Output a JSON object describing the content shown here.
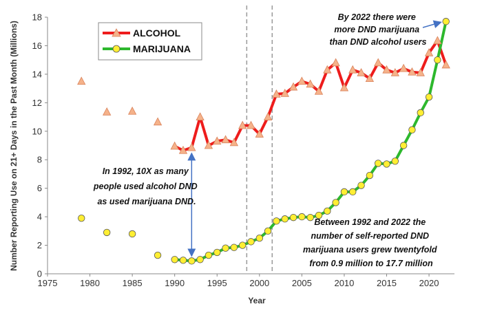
{
  "chart_data": {
    "type": "line",
    "title": "",
    "xlabel": "Year",
    "ylabel": "Number Reporting Use on 21+ Days in the Past Month (Millions)",
    "xlim": [
      1975,
      2023
    ],
    "ylim": [
      0,
      18
    ],
    "x_ticks": [
      1975,
      1980,
      1985,
      1990,
      1995,
      2000,
      2005,
      2010,
      2015,
      2020
    ],
    "y_ticks": [
      0,
      2,
      4,
      6,
      8,
      10,
      12,
      14,
      16,
      18
    ],
    "grid": false,
    "legend_position": "top-left",
    "vertical_reference_lines": [
      1998.5,
      2001.5
    ],
    "series": [
      {
        "name": "ALCOHOL",
        "color": "#ee1c1c",
        "marker": "triangle",
        "marker_color": "#f5b28a",
        "early_points": [
          [
            1979,
            13.5
          ],
          [
            1982,
            11.35
          ],
          [
            1985,
            11.4
          ],
          [
            1988,
            10.65
          ]
        ],
        "points": [
          [
            1990,
            8.95
          ],
          [
            1991,
            8.65
          ],
          [
            1992,
            8.85
          ],
          [
            1993,
            11.0
          ],
          [
            1994,
            9.0
          ],
          [
            1995,
            9.3
          ],
          [
            1996,
            9.4
          ],
          [
            1997,
            9.2
          ],
          [
            1998,
            10.4
          ],
          [
            1999,
            10.4
          ],
          [
            2000,
            9.8
          ],
          [
            2001,
            11.0
          ],
          [
            2002,
            12.6
          ],
          [
            2003,
            12.65
          ],
          [
            2004,
            13.1
          ],
          [
            2005,
            13.5
          ],
          [
            2006,
            13.3
          ],
          [
            2007,
            12.8
          ],
          [
            2008,
            14.3
          ],
          [
            2009,
            14.8
          ],
          [
            2010,
            13.05
          ],
          [
            2011,
            14.3
          ],
          [
            2012,
            14.1
          ],
          [
            2013,
            13.7
          ],
          [
            2014,
            14.8
          ],
          [
            2015,
            14.3
          ],
          [
            2016,
            14.1
          ],
          [
            2017,
            14.4
          ],
          [
            2018,
            14.15
          ],
          [
            2019,
            14.1
          ],
          [
            2020,
            15.5
          ],
          [
            2021,
            16.35
          ],
          [
            2022,
            14.65
          ]
        ]
      },
      {
        "name": "MARIJUANA",
        "color": "#2db82d",
        "marker": "circle",
        "marker_color": "#ffee33",
        "early_points": [
          [
            1979,
            3.9
          ],
          [
            1982,
            2.9
          ],
          [
            1985,
            2.8
          ],
          [
            1988,
            1.3
          ]
        ],
        "points": [
          [
            1990,
            1.0
          ],
          [
            1991,
            0.95
          ],
          [
            1992,
            0.9
          ],
          [
            1993,
            1.0
          ],
          [
            1994,
            1.3
          ],
          [
            1995,
            1.5
          ],
          [
            1996,
            1.8
          ],
          [
            1997,
            1.85
          ],
          [
            1998,
            2.0
          ],
          [
            1999,
            2.25
          ],
          [
            2000,
            2.5
          ],
          [
            2001,
            3.0
          ],
          [
            2002,
            3.7
          ],
          [
            2003,
            3.85
          ],
          [
            2004,
            3.95
          ],
          [
            2005,
            4.0
          ],
          [
            2006,
            3.95
          ],
          [
            2007,
            4.1
          ],
          [
            2008,
            4.4
          ],
          [
            2009,
            5.0
          ],
          [
            2010,
            5.75
          ],
          [
            2011,
            5.75
          ],
          [
            2012,
            6.2
          ],
          [
            2013,
            6.9
          ],
          [
            2014,
            7.75
          ],
          [
            2015,
            7.7
          ],
          [
            2016,
            7.9
          ],
          [
            2017,
            9.0
          ],
          [
            2018,
            10.1
          ],
          [
            2019,
            11.3
          ],
          [
            2020,
            12.4
          ],
          [
            2021,
            15.0
          ],
          [
            2022,
            17.7
          ]
        ]
      }
    ],
    "annotations": [
      {
        "id": "top",
        "lines": [
          "By 2022  there were",
          "more DND marijuana",
          "than DND alcohol users"
        ],
        "arrow_to": [
          2022,
          17.7
        ]
      },
      {
        "id": "left",
        "lines": [
          "In 1992, 10X as many",
          "people used alcohol DND",
          "as used marijuana DND."
        ],
        "arrow_between": [
          [
            1992,
            0.9
          ],
          [
            1992,
            8.85
          ]
        ]
      },
      {
        "id": "bottom",
        "lines": [
          "Between 1992 and 2022 the",
          "number of self-reported DND",
          "marijuana users grew twentyfold",
          "from 0.9 million to 17.7 million"
        ]
      }
    ]
  }
}
